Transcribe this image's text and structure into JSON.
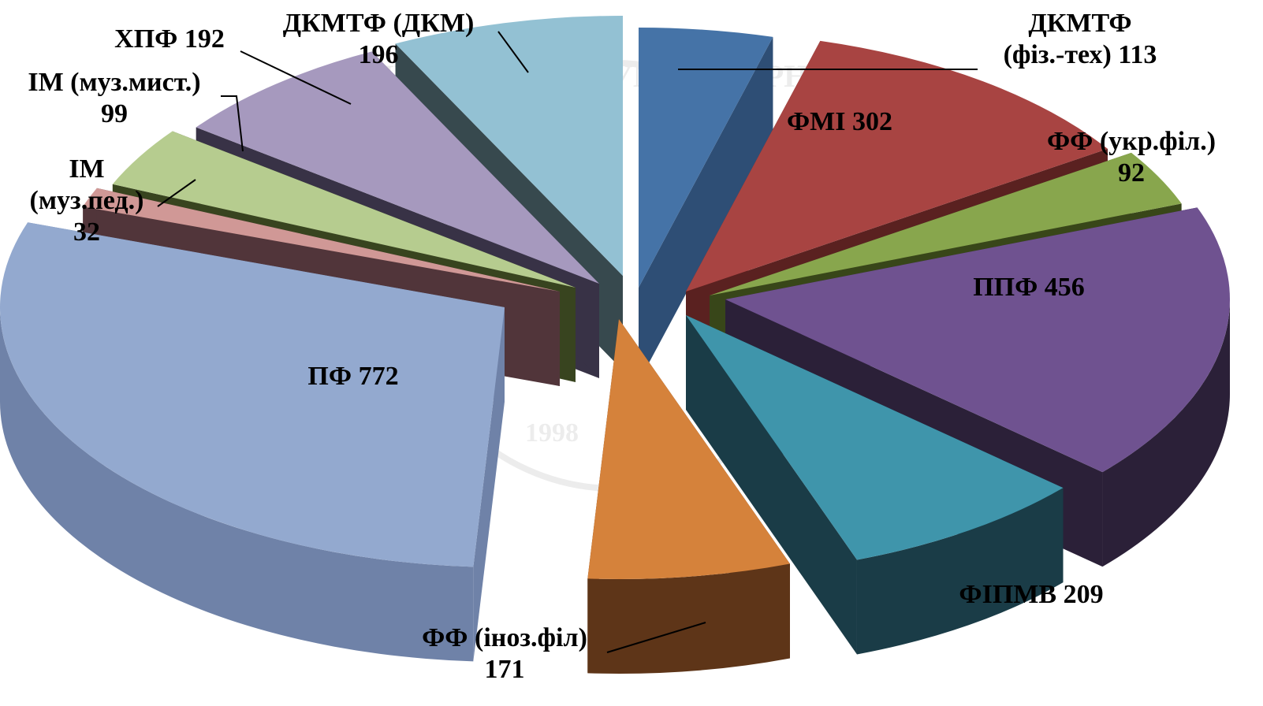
{
  "chart_data": {
    "type": "pie",
    "style": "3d-exploded",
    "legend": "none",
    "slices": [
      {
        "label_lines": [
          "ДКМТФ",
          "(фіз.-тех) 113"
        ],
        "value": 113,
        "color": "#4573A7",
        "side_color": "#2E4E75"
      },
      {
        "label_lines": [
          "ФМІ 302"
        ],
        "value": 302,
        "color": "#A84442",
        "side_color": "#5A2120"
      },
      {
        "label_lines": [
          "ФФ (укр.філ.)",
          "92"
        ],
        "value": 92,
        "color": "#88A64D",
        "side_color": "#384619"
      },
      {
        "label_lines": [
          "ППФ 456"
        ],
        "value": 456,
        "color": "#6F5290",
        "side_color": "#2B2038"
      },
      {
        "label_lines": [
          "ФІПМВ 209"
        ],
        "value": 209,
        "color": "#3F95AB",
        "side_color": "#1A3C47"
      },
      {
        "label_lines": [
          "ФФ (іноз.філ)",
          "171"
        ],
        "value": 171,
        "color": "#D5823B",
        "side_color": "#5E3518"
      },
      {
        "label_lines": [
          "ПФ 772"
        ],
        "value": 772,
        "color": "#93A9CF",
        "side_color": "#6F82A8"
      },
      {
        "label_lines": [
          "ІМ",
          "(муз.пед.)",
          "32"
        ],
        "value": 32,
        "color": "#D09896",
        "side_color": "#51353A"
      },
      {
        "label_lines": [
          "ІМ (муз.мист.)",
          "99"
        ],
        "value": 99,
        "color": "#B6CC8F",
        "side_color": "#38441F"
      },
      {
        "label_lines": [
          "ХПФ 192"
        ],
        "value": 192,
        "color": "#A699BE",
        "side_color": "#383246"
      },
      {
        "label_lines": [
          "ДКМТФ (ДКМ)",
          "196"
        ],
        "value": 196,
        "color": "#93C1D3",
        "side_color": "#37494E"
      }
    ]
  },
  "watermark": {
    "text": "ДЕРЖАВНИЙ ГУМАНІТАРНИЙ",
    "year": "1998"
  }
}
